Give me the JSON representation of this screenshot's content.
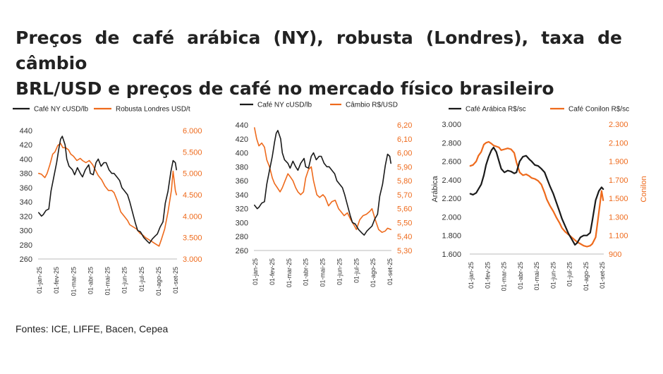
{
  "title": {
    "line1": "Preços de café arábica (NY), robusta (Londres), taxa de câmbio",
    "line2": "BRL/USD e preços de café no mercado físico brasileiro"
  },
  "footer": "Fontes: ICE, LIFFE, Bacen, Cepea",
  "colors": {
    "series1": "#1a1a1a",
    "series2": "#ee6a1c",
    "axis_right": "#ee6a1c",
    "axis_left": "#333333"
  },
  "chart_data": [
    {
      "type": "line",
      "legend_position": "top",
      "grid": false,
      "x_ticks": [
        "01-jan-25",
        "01-fev-25",
        "01-mar-25",
        "01-abr-25",
        "01-mai-25",
        "01-jun-25",
        "01-jul-25",
        "01-ago-25",
        "01-set-25"
      ],
      "xlim": [
        "2025-01-01",
        "2025-09-05"
      ],
      "y_left": {
        "label": "",
        "ticks": [
          "440",
          "420",
          "400",
          "380",
          "360",
          "340",
          "320",
          "300",
          "280",
          "260"
        ],
        "lim": [
          260,
          440
        ]
      },
      "y_right": {
        "label": "",
        "ticks": [
          "6.000",
          "5.500",
          "5.000",
          "4.500",
          "4.000",
          "3.500",
          "3.000"
        ],
        "lim": [
          3000,
          6000
        ]
      },
      "series": [
        {
          "name": "Café NY cUSD/lb",
          "axis": "left",
          "color": "#1a1a1a",
          "x": [
            "2025-01-02",
            "2025-01-07",
            "2025-01-10",
            "2025-01-15",
            "2025-01-20",
            "2025-01-24",
            "2025-01-29",
            "2025-02-03",
            "2025-02-07",
            "2025-02-10",
            "2025-02-13",
            "2025-02-18",
            "2025-02-21",
            "2025-02-25",
            "2025-03-03",
            "2025-03-07",
            "2025-03-12",
            "2025-03-17",
            "2025-03-21",
            "2025-03-26",
            "2025-04-01",
            "2025-04-04",
            "2025-04-09",
            "2025-04-14",
            "2025-04-18",
            "2025-04-23",
            "2025-04-28",
            "2025-05-02",
            "2025-05-07",
            "2025-05-12",
            "2025-05-16",
            "2025-05-21",
            "2025-05-26",
            "2025-05-30",
            "2025-06-04",
            "2025-06-09",
            "2025-06-13",
            "2025-06-18",
            "2025-06-23",
            "2025-06-27",
            "2025-07-02",
            "2025-07-08",
            "2025-07-14",
            "2025-07-18",
            "2025-07-23",
            "2025-07-28",
            "2025-08-01",
            "2025-08-06",
            "2025-08-11",
            "2025-08-15",
            "2025-08-20",
            "2025-08-25",
            "2025-08-29",
            "2025-09-02",
            "2025-09-04"
          ],
          "y": [
            325,
            320,
            322,
            328,
            330,
            355,
            375,
            395,
            415,
            428,
            432,
            420,
            400,
            390,
            385,
            378,
            388,
            380,
            375,
            385,
            392,
            380,
            378,
            395,
            400,
            390,
            395,
            395,
            385,
            380,
            380,
            375,
            370,
            360,
            355,
            350,
            340,
            325,
            310,
            300,
            298,
            290,
            285,
            282,
            288,
            292,
            295,
            305,
            312,
            338,
            355,
            382,
            398,
            395,
            385
          ]
        },
        {
          "name": "Robusta Londres  USD/t",
          "axis": "right",
          "color": "#ee6a1c",
          "x": [
            "2025-01-02",
            "2025-01-07",
            "2025-01-13",
            "2025-01-17",
            "2025-01-22",
            "2025-01-27",
            "2025-01-31",
            "2025-02-05",
            "2025-02-10",
            "2025-02-14",
            "2025-02-19",
            "2025-02-24",
            "2025-02-28",
            "2025-03-05",
            "2025-03-11",
            "2025-03-17",
            "2025-03-21",
            "2025-03-27",
            "2025-04-02",
            "2025-04-08",
            "2025-04-14",
            "2025-04-18",
            "2025-04-24",
            "2025-04-30",
            "2025-05-06",
            "2025-05-12",
            "2025-05-16",
            "2025-05-22",
            "2025-05-28",
            "2025-06-03",
            "2025-06-09",
            "2025-06-13",
            "2025-06-19",
            "2025-06-25",
            "2025-07-01",
            "2025-07-07",
            "2025-07-11",
            "2025-07-17",
            "2025-07-23",
            "2025-07-29",
            "2025-08-04",
            "2025-08-08",
            "2025-08-14",
            "2025-08-20",
            "2025-08-26",
            "2025-08-29",
            "2025-09-02",
            "2025-09-04"
          ],
          "y": [
            5000,
            4980,
            4900,
            5000,
            5200,
            5450,
            5500,
            5650,
            5700,
            5600,
            5600,
            5550,
            5450,
            5400,
            5300,
            5350,
            5300,
            5250,
            5300,
            5200,
            5050,
            4950,
            4850,
            4700,
            4600,
            4600,
            4550,
            4350,
            4100,
            4000,
            3900,
            3800,
            3750,
            3700,
            3600,
            3550,
            3500,
            3450,
            3400,
            3350,
            3300,
            3450,
            3700,
            4100,
            4600,
            5050,
            4600,
            4500
          ]
        }
      ]
    },
    {
      "type": "line",
      "legend_position": "top",
      "grid": false,
      "x_ticks": [
        "01-jan-25",
        "01-fev-25",
        "01-mar-25",
        "01-abr-25",
        "01-mai-25",
        "01-jun-25",
        "01-jul-25",
        "01-ago-25",
        "01-set-25"
      ],
      "xlim": [
        "2025-01-01",
        "2025-09-05"
      ],
      "y_left": {
        "label": "",
        "ticks": [
          "440",
          "420",
          "400",
          "380",
          "360",
          "340",
          "320",
          "300",
          "280",
          "260"
        ],
        "lim": [
          260,
          440
        ]
      },
      "y_right": {
        "label": "",
        "ticks": [
          "6,20",
          "6,10",
          "6,00",
          "5,90",
          "5,80",
          "5,70",
          "5,60",
          "5,50",
          "5,40",
          "5,30"
        ],
        "lim": [
          5.3,
          6.2
        ]
      },
      "series": [
        {
          "name": "Café NY cUSD/lb",
          "axis": "left",
          "color": "#1a1a1a",
          "x": [
            "2025-01-02",
            "2025-01-07",
            "2025-01-10",
            "2025-01-15",
            "2025-01-20",
            "2025-01-24",
            "2025-01-29",
            "2025-02-03",
            "2025-02-07",
            "2025-02-10",
            "2025-02-13",
            "2025-02-18",
            "2025-02-21",
            "2025-02-25",
            "2025-03-03",
            "2025-03-07",
            "2025-03-12",
            "2025-03-17",
            "2025-03-21",
            "2025-03-26",
            "2025-04-01",
            "2025-04-04",
            "2025-04-09",
            "2025-04-14",
            "2025-04-18",
            "2025-04-23",
            "2025-04-28",
            "2025-05-02",
            "2025-05-07",
            "2025-05-12",
            "2025-05-16",
            "2025-05-21",
            "2025-05-26",
            "2025-05-30",
            "2025-06-04",
            "2025-06-09",
            "2025-06-13",
            "2025-06-18",
            "2025-06-23",
            "2025-06-27",
            "2025-07-02",
            "2025-07-08",
            "2025-07-14",
            "2025-07-18",
            "2025-07-23",
            "2025-07-28",
            "2025-08-01",
            "2025-08-06",
            "2025-08-11",
            "2025-08-15",
            "2025-08-20",
            "2025-08-25",
            "2025-08-29",
            "2025-09-02",
            "2025-09-04"
          ],
          "y": [
            325,
            320,
            322,
            328,
            330,
            355,
            375,
            395,
            415,
            428,
            432,
            420,
            400,
            390,
            385,
            378,
            388,
            380,
            375,
            385,
            392,
            380,
            378,
            395,
            400,
            390,
            395,
            395,
            385,
            380,
            380,
            375,
            370,
            360,
            355,
            350,
            340,
            325,
            310,
            300,
            298,
            290,
            285,
            282,
            288,
            292,
            295,
            305,
            312,
            338,
            355,
            382,
            398,
            395,
            385
          ]
        },
        {
          "name": "Câmbio R$/USD",
          "axis": "right",
          "color": "#ee6a1c",
          "x": [
            "2025-01-02",
            "2025-01-06",
            "2025-01-10",
            "2025-01-15",
            "2025-01-20",
            "2025-01-24",
            "2025-01-29",
            "2025-02-03",
            "2025-02-07",
            "2025-02-12",
            "2025-02-17",
            "2025-02-21",
            "2025-02-26",
            "2025-03-03",
            "2025-03-07",
            "2025-03-12",
            "2025-03-17",
            "2025-03-21",
            "2025-03-26",
            "2025-03-31",
            "2025-04-04",
            "2025-04-09",
            "2025-04-14",
            "2025-04-18",
            "2025-04-24",
            "2025-04-29",
            "2025-05-05",
            "2025-05-09",
            "2025-05-15",
            "2025-05-21",
            "2025-05-27",
            "2025-06-02",
            "2025-06-06",
            "2025-06-12",
            "2025-06-18",
            "2025-06-24",
            "2025-06-30",
            "2025-07-04",
            "2025-07-10",
            "2025-07-16",
            "2025-07-22",
            "2025-07-28",
            "2025-08-01",
            "2025-08-07",
            "2025-08-13",
            "2025-08-19",
            "2025-08-25",
            "2025-08-29",
            "2025-09-04"
          ],
          "y": [
            6.18,
            6.1,
            6.05,
            6.07,
            6.04,
            5.95,
            5.9,
            5.82,
            5.78,
            5.75,
            5.72,
            5.75,
            5.8,
            5.85,
            5.83,
            5.8,
            5.75,
            5.72,
            5.7,
            5.72,
            5.82,
            5.88,
            5.9,
            5.8,
            5.7,
            5.68,
            5.7,
            5.68,
            5.62,
            5.65,
            5.66,
            5.6,
            5.58,
            5.55,
            5.57,
            5.52,
            5.48,
            5.45,
            5.52,
            5.55,
            5.56,
            5.58,
            5.6,
            5.52,
            5.45,
            5.43,
            5.44,
            5.46,
            5.45
          ]
        }
      ]
    },
    {
      "type": "line",
      "legend_position": "top",
      "grid": false,
      "x_ticks": [
        "01-jan-25",
        "01-fev-25",
        "01-mar-25",
        "01-abr-25",
        "01-mai-25",
        "01-jun-25",
        "01-jul-25",
        "01-ago-25",
        "01-set-25"
      ],
      "xlim": [
        "2025-01-01",
        "2025-09-05"
      ],
      "y_left": {
        "label": "Arábica",
        "ticks": [
          "3.000",
          "2.800",
          "2.600",
          "2.400",
          "2.200",
          "2.000",
          "1.800",
          "1.600"
        ],
        "lim": [
          1600,
          3000
        ]
      },
      "y_right": {
        "label": "Conilon",
        "ticks": [
          "2.300",
          "2.100",
          "1.900",
          "1.700",
          "1.500",
          "1.300",
          "1.100",
          "900"
        ],
        "lim": [
          900,
          2300
        ]
      },
      "series": [
        {
          "name": "Café Arábica R$/sc",
          "axis": "left",
          "color": "#1a1a1a",
          "x": [
            "2025-01-02",
            "2025-01-07",
            "2025-01-13",
            "2025-01-17",
            "2025-01-22",
            "2025-01-27",
            "2025-01-31",
            "2025-02-05",
            "2025-02-10",
            "2025-02-14",
            "2025-02-19",
            "2025-02-24",
            "2025-02-28",
            "2025-03-06",
            "2025-03-12",
            "2025-03-18",
            "2025-03-24",
            "2025-03-28",
            "2025-04-03",
            "2025-04-09",
            "2025-04-15",
            "2025-04-21",
            "2025-04-25",
            "2025-05-01",
            "2025-05-07",
            "2025-05-13",
            "2025-05-19",
            "2025-05-23",
            "2025-05-29",
            "2025-06-04",
            "2025-06-10",
            "2025-06-16",
            "2025-06-20",
            "2025-06-26",
            "2025-07-02",
            "2025-07-08",
            "2025-07-14",
            "2025-07-18",
            "2025-07-24",
            "2025-07-30",
            "2025-08-05",
            "2025-08-11",
            "2025-08-15",
            "2025-08-21",
            "2025-08-27",
            "2025-09-01",
            "2025-09-04"
          ],
          "y": [
            2250,
            2240,
            2260,
            2300,
            2350,
            2450,
            2560,
            2650,
            2720,
            2750,
            2700,
            2600,
            2520,
            2480,
            2500,
            2490,
            2470,
            2480,
            2600,
            2650,
            2660,
            2620,
            2600,
            2560,
            2550,
            2520,
            2480,
            2420,
            2330,
            2250,
            2150,
            2050,
            1980,
            1900,
            1820,
            1760,
            1700,
            1720,
            1780,
            1800,
            1800,
            1830,
            1960,
            2180,
            2280,
            2320,
            2300
          ]
        },
        {
          "name": "Café Conilon R$/sc",
          "axis": "right",
          "color": "#ee6a1c",
          "x": [
            "2025-01-02",
            "2025-01-07",
            "2025-01-13",
            "2025-01-17",
            "2025-01-22",
            "2025-01-27",
            "2025-01-31",
            "2025-02-05",
            "2025-02-10",
            "2025-02-14",
            "2025-02-19",
            "2025-02-24",
            "2025-02-28",
            "2025-03-06",
            "2025-03-12",
            "2025-03-18",
            "2025-03-24",
            "2025-03-28",
            "2025-04-03",
            "2025-04-09",
            "2025-04-15",
            "2025-04-21",
            "2025-04-25",
            "2025-05-01",
            "2025-05-07",
            "2025-05-13",
            "2025-05-19",
            "2025-05-23",
            "2025-05-29",
            "2025-06-04",
            "2025-06-10",
            "2025-06-16",
            "2025-06-20",
            "2025-06-26",
            "2025-07-02",
            "2025-07-08",
            "2025-07-14",
            "2025-07-18",
            "2025-07-24",
            "2025-07-30",
            "2025-08-05",
            "2025-08-11",
            "2025-08-15",
            "2025-08-21",
            "2025-08-27",
            "2025-09-01",
            "2025-09-04"
          ],
          "y": [
            1850,
            1860,
            1900,
            1960,
            2000,
            2080,
            2100,
            2110,
            2090,
            2070,
            2060,
            2050,
            2020,
            2030,
            2040,
            2030,
            1990,
            1890,
            1780,
            1750,
            1760,
            1740,
            1720,
            1710,
            1690,
            1650,
            1560,
            1490,
            1420,
            1360,
            1290,
            1230,
            1180,
            1140,
            1110,
            1080,
            1050,
            1030,
            1010,
            990,
            980,
            990,
            1010,
            1080,
            1350,
            1580,
            1480
          ]
        }
      ]
    }
  ]
}
